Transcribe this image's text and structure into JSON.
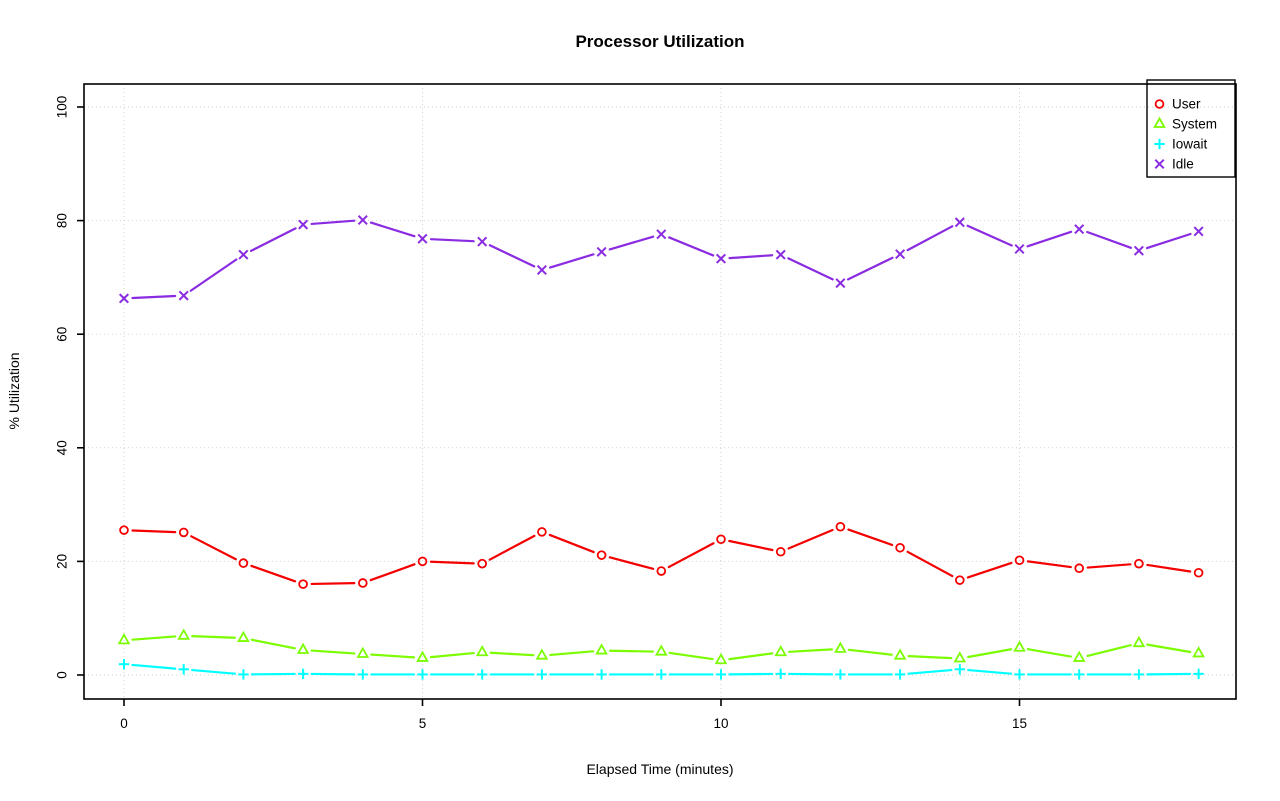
{
  "chart_data": {
    "type": "line",
    "title": "Processor Utilization",
    "xlabel": "Elapsed Time (minutes)",
    "ylabel": "% Utilization",
    "x": [
      0,
      1,
      2,
      3,
      4,
      5,
      6,
      7,
      8,
      9,
      10,
      11,
      12,
      13,
      14,
      15,
      16,
      17,
      18
    ],
    "series": [
      {
        "name": "User",
        "marker": "circle",
        "color": "#f40000",
        "values": [
          25.5,
          25.1,
          19.7,
          16.0,
          16.2,
          20.0,
          19.6,
          25.2,
          21.1,
          18.3,
          23.9,
          21.7,
          26.1,
          22.4,
          16.7,
          20.2,
          18.8,
          19.6,
          18.0
        ]
      },
      {
        "name": "System",
        "marker": "triangle",
        "color": "#7cfc00",
        "values": [
          6.1,
          6.9,
          6.5,
          4.4,
          3.7,
          3.0,
          4.0,
          3.4,
          4.3,
          4.1,
          2.6,
          4.0,
          4.6,
          3.4,
          2.9,
          4.8,
          3.0,
          5.6,
          3.8
        ]
      },
      {
        "name": "Iowait",
        "marker": "plus",
        "color": "#00ffff",
        "values": [
          1.9,
          1.0,
          0.1,
          0.2,
          0.1,
          0.1,
          0.1,
          0.1,
          0.1,
          0.1,
          0.1,
          0.2,
          0.1,
          0.1,
          1.0,
          0.1,
          0.1,
          0.1,
          0.2
        ]
      },
      {
        "name": "Idle",
        "marker": "x",
        "color": "#8a2be2",
        "values": [
          66.3,
          66.8,
          74.0,
          79.3,
          80.1,
          76.8,
          76.3,
          71.3,
          74.5,
          77.6,
          73.3,
          74.0,
          69.0,
          74.1,
          79.7,
          75.0,
          78.5,
          74.7,
          78.1
        ]
      }
    ],
    "xticks": [
      0,
      5,
      10,
      15
    ],
    "yticks": [
      0,
      20,
      40,
      60,
      80,
      100
    ],
    "xlim": [
      0,
      18
    ],
    "ylim": [
      0,
      100
    ],
    "grid": true,
    "legend_position": "top-right",
    "grid_color": "#d2d2d2"
  }
}
